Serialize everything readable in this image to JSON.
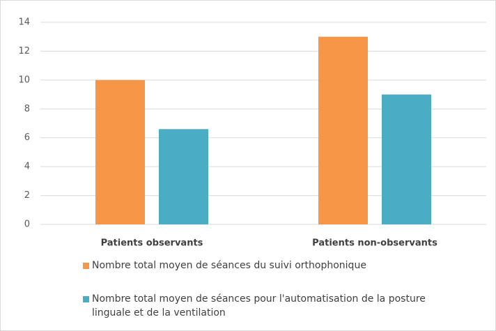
{
  "chart_data": {
    "type": "bar",
    "categories": [
      "Patients observants",
      "Patients non-observants"
    ],
    "series": [
      {
        "name": "Nombre total moyen de séances du suivi orthophonique",
        "color": "#f79646",
        "values": [
          10,
          13
        ]
      },
      {
        "name": "Nombre total moyen de séances pour l'automatisation de la posture linguale et de la ventilation",
        "color": "#4bacc6",
        "values": [
          6.6,
          9
        ]
      }
    ],
    "ylim": [
      0,
      14
    ],
    "yticks": [
      0,
      2,
      4,
      6,
      8,
      10,
      12,
      14
    ],
    "grid": true,
    "legend": "bottom"
  }
}
